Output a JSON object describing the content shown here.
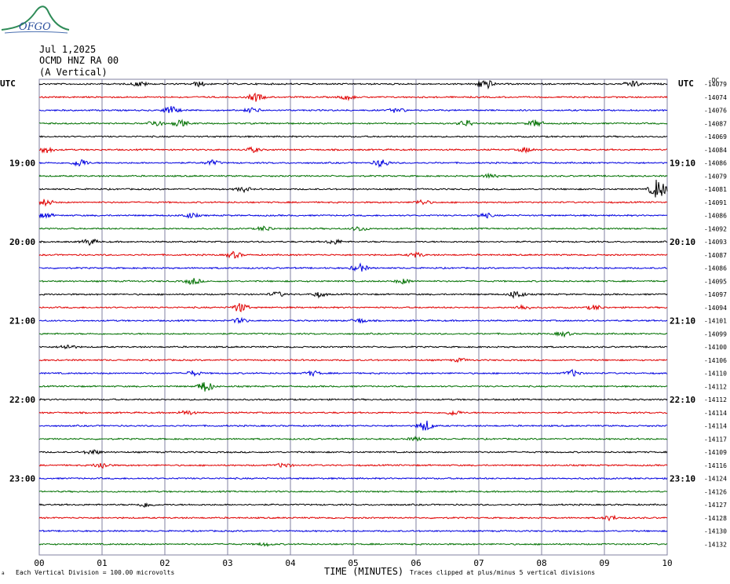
{
  "header": {
    "logo_text": "OFGO",
    "date": "Jul 1,2025",
    "station": "OCMD HNZ RA 00",
    "component": "(A Vertical)"
  },
  "left_axis_title": "UTC",
  "right_axis_title": "UTC",
  "dc_header": "-DC",
  "footer": {
    "division_note": "Each Vertical Division =  100.00 microvolts",
    "x_axis_title": "TIME (MINUTES)",
    "clip_note": "Traces clipped at plus/minus 5 vertical divisions"
  },
  "colors": {
    "cycle": [
      "#000000",
      "#e00000",
      "#0000e0",
      "#007000"
    ],
    "grid": "#8080a0"
  },
  "chart_data": {
    "type": "line",
    "title": "",
    "xlabel": "TIME (MINUTES)",
    "x_ticks": [
      "00",
      "01",
      "02",
      "03",
      "04",
      "05",
      "06",
      "07",
      "08",
      "09",
      "10"
    ],
    "xlim": [
      0,
      10
    ],
    "left_hour_labels": [
      {
        "row": 6,
        "label": "19:00"
      },
      {
        "row": 12,
        "label": "20:00"
      },
      {
        "row": 18,
        "label": "21:00"
      },
      {
        "row": 24,
        "label": "22:00"
      },
      {
        "row": 30,
        "label": "23:00"
      }
    ],
    "right_hour_labels": [
      {
        "row": 6,
        "label": "19:10"
      },
      {
        "row": 12,
        "label": "20:10"
      },
      {
        "row": 18,
        "label": "21:10"
      },
      {
        "row": 24,
        "label": "22:10"
      },
      {
        "row": 30,
        "label": "23:10"
      }
    ],
    "dc_offsets": [
      "-14079",
      "-14074",
      "-14076",
      "-14087",
      "-14069",
      "-14084",
      "-14086",
      "-14079",
      "-14081",
      "-14091",
      "-14086",
      "-14092",
      "-14093",
      "-14087",
      "-14086",
      "-14095",
      "-14097",
      "-14094",
      "-14101",
      "-14099",
      "-14100",
      "-14106",
      "-14110",
      "-14112",
      "-14112",
      "-14114",
      "-14114",
      "-14117",
      "-14109",
      "-14116",
      "-14124",
      "-14126",
      "-14127",
      "-14128",
      "-14130",
      "-14132"
    ],
    "events": [
      {
        "row": 0,
        "min": 1.6,
        "amp": 3
      },
      {
        "row": 0,
        "min": 2.55,
        "amp": 3
      },
      {
        "row": 0,
        "min": 7.1,
        "amp": 7
      },
      {
        "row": 0,
        "min": 9.45,
        "amp": 4
      },
      {
        "row": 1,
        "min": 3.45,
        "amp": 5
      },
      {
        "row": 1,
        "min": 4.9,
        "amp": 3
      },
      {
        "row": 2,
        "min": 2.1,
        "amp": 5
      },
      {
        "row": 2,
        "min": 3.4,
        "amp": 3
      },
      {
        "row": 2,
        "min": 5.7,
        "amp": 3
      },
      {
        "row": 3,
        "min": 1.85,
        "amp": 4
      },
      {
        "row": 3,
        "min": 2.25,
        "amp": 4
      },
      {
        "row": 3,
        "min": 6.8,
        "amp": 4
      },
      {
        "row": 3,
        "min": 7.9,
        "amp": 4
      },
      {
        "row": 5,
        "min": 0.1,
        "amp": 4
      },
      {
        "row": 5,
        "min": 3.4,
        "amp": 3
      },
      {
        "row": 5,
        "min": 7.75,
        "amp": 3
      },
      {
        "row": 6,
        "min": 0.65,
        "amp": 5
      },
      {
        "row": 6,
        "min": 2.75,
        "amp": 3
      },
      {
        "row": 6,
        "min": 5.45,
        "amp": 5
      },
      {
        "row": 7,
        "min": 7.2,
        "amp": 3
      },
      {
        "row": 8,
        "min": 3.25,
        "amp": 3
      },
      {
        "row": 8,
        "min": 9.85,
        "amp": 14
      },
      {
        "row": 9,
        "min": 0.1,
        "amp": 4
      },
      {
        "row": 9,
        "min": 6.1,
        "amp": 3
      },
      {
        "row": 10,
        "min": 0.1,
        "amp": 3
      },
      {
        "row": 10,
        "min": 2.4,
        "amp": 3
      },
      {
        "row": 10,
        "min": 7.1,
        "amp": 3
      },
      {
        "row": 11,
        "min": 3.6,
        "amp": 3
      },
      {
        "row": 11,
        "min": 5.1,
        "amp": 3
      },
      {
        "row": 12,
        "min": 0.8,
        "amp": 4
      },
      {
        "row": 12,
        "min": 4.7,
        "amp": 3
      },
      {
        "row": 13,
        "min": 3.1,
        "amp": 4
      },
      {
        "row": 13,
        "min": 6.0,
        "amp": 3
      },
      {
        "row": 14,
        "min": 5.1,
        "amp": 5
      },
      {
        "row": 15,
        "min": 2.45,
        "amp": 4
      },
      {
        "row": 15,
        "min": 5.8,
        "amp": 3
      },
      {
        "row": 16,
        "min": 3.8,
        "amp": 3
      },
      {
        "row": 16,
        "min": 4.45,
        "amp": 3
      },
      {
        "row": 16,
        "min": 7.6,
        "amp": 5
      },
      {
        "row": 17,
        "min": 3.2,
        "amp": 6
      },
      {
        "row": 17,
        "min": 7.7,
        "amp": 3
      },
      {
        "row": 17,
        "min": 8.85,
        "amp": 3
      },
      {
        "row": 18,
        "min": 3.2,
        "amp": 3
      },
      {
        "row": 18,
        "min": 5.1,
        "amp": 3
      },
      {
        "row": 19,
        "min": 8.35,
        "amp": 3
      },
      {
        "row": 20,
        "min": 0.45,
        "amp": 3
      },
      {
        "row": 21,
        "min": 6.7,
        "amp": 2
      },
      {
        "row": 22,
        "min": 2.45,
        "amp": 3
      },
      {
        "row": 22,
        "min": 4.35,
        "amp": 3
      },
      {
        "row": 22,
        "min": 8.5,
        "amp": 4
      },
      {
        "row": 23,
        "min": 2.65,
        "amp": 7
      },
      {
        "row": 25,
        "min": 2.35,
        "amp": 3
      },
      {
        "row": 25,
        "min": 6.6,
        "amp": 3
      },
      {
        "row": 26,
        "min": 6.15,
        "amp": 7
      },
      {
        "row": 27,
        "min": 6.0,
        "amp": 2
      },
      {
        "row": 28,
        "min": 0.85,
        "amp": 3
      },
      {
        "row": 29,
        "min": 1.0,
        "amp": 4
      },
      {
        "row": 29,
        "min": 3.9,
        "amp": 3
      },
      {
        "row": 32,
        "min": 1.7,
        "amp": 3
      },
      {
        "row": 33,
        "min": 9.1,
        "amp": 3
      },
      {
        "row": 35,
        "min": 3.6,
        "amp": 2
      }
    ]
  }
}
